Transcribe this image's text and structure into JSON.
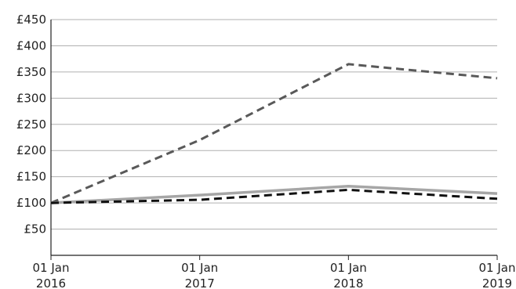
{
  "chart_data": {
    "type": "line",
    "title": "",
    "xlabel": "",
    "ylabel": "",
    "x": [
      "01 Jan 2016",
      "01 Jan 2017",
      "01 Jan 2018",
      "01 Jan 2019"
    ],
    "x_tick_labels": [
      {
        "line1": "01 Jan",
        "line2": "2016"
      },
      {
        "line1": "01 Jan",
        "line2": "2017"
      },
      {
        "line1": "01 Jan",
        "line2": "2018"
      },
      {
        "line1": "01 Jan",
        "line2": "2019"
      }
    ],
    "y_ticks": [
      50,
      100,
      150,
      200,
      250,
      300,
      350,
      400,
      450
    ],
    "y_tick_labels": [
      "£50",
      "£100",
      "£150",
      "£200",
      "£250",
      "£300",
      "£350",
      "£400",
      "£450"
    ],
    "ylim": [
      0,
      450
    ],
    "grid": true,
    "legend": "none",
    "series": [
      {
        "values": [
          100,
          220,
          365,
          338
        ],
        "color": "#595959",
        "line_style": "dashed"
      },
      {
        "values": [
          100,
          115,
          132,
          118
        ],
        "color": "#a6a6a6",
        "line_style": "solid"
      },
      {
        "values": [
          100,
          106,
          125,
          108
        ],
        "color": "#111111",
        "line_style": "dashed"
      }
    ]
  }
}
